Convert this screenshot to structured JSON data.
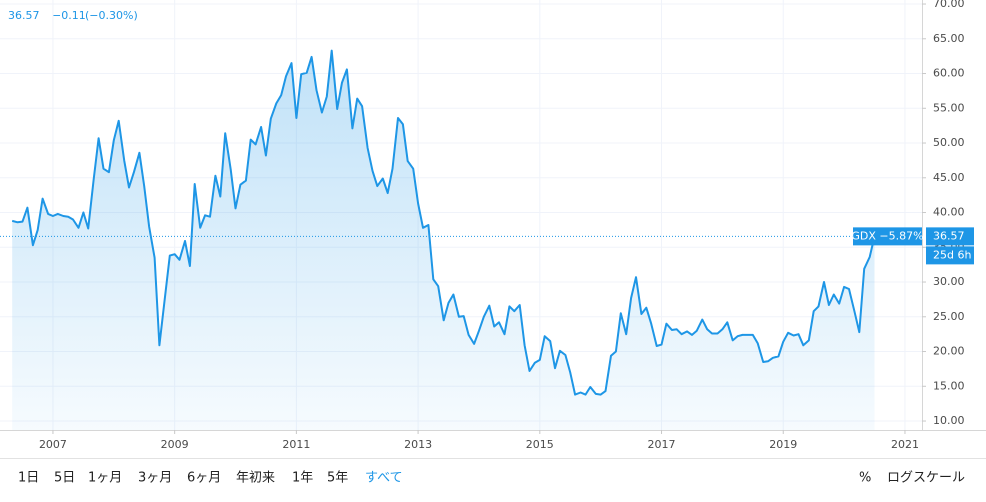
{
  "chart_data": {
    "type": "area-line",
    "header": {
      "last": "36.57",
      "change": "−0.11",
      "change_pct": "(−0.30%)"
    },
    "x": [
      2006.33,
      2006.42,
      2006.5,
      2006.58,
      2006.67,
      2006.75,
      2006.83,
      2006.92,
      2007.0,
      2007.08,
      2007.17,
      2007.25,
      2007.33,
      2007.42,
      2007.5,
      2007.58,
      2007.67,
      2007.75,
      2007.83,
      2007.92,
      2008.0,
      2008.08,
      2008.17,
      2008.25,
      2008.33,
      2008.42,
      2008.5,
      2008.58,
      2008.67,
      2008.75,
      2008.83,
      2008.92,
      2009.0,
      2009.08,
      2009.17,
      2009.25,
      2009.33,
      2009.42,
      2009.5,
      2009.58,
      2009.67,
      2009.75,
      2009.83,
      2009.92,
      2010.0,
      2010.08,
      2010.17,
      2010.25,
      2010.33,
      2010.42,
      2010.5,
      2010.58,
      2010.67,
      2010.75,
      2010.83,
      2010.92,
      2011.0,
      2011.08,
      2011.17,
      2011.25,
      2011.33,
      2011.42,
      2011.5,
      2011.58,
      2011.67,
      2011.75,
      2011.83,
      2011.92,
      2012.0,
      2012.08,
      2012.17,
      2012.25,
      2012.33,
      2012.42,
      2012.5,
      2012.58,
      2012.67,
      2012.75,
      2012.83,
      2012.92,
      2013.0,
      2013.08,
      2013.17,
      2013.25,
      2013.33,
      2013.42,
      2013.5,
      2013.58,
      2013.67,
      2013.75,
      2013.83,
      2013.92,
      2014.0,
      2014.08,
      2014.17,
      2014.25,
      2014.33,
      2014.42,
      2014.5,
      2014.58,
      2014.67,
      2014.75,
      2014.83,
      2014.92,
      2015.0,
      2015.08,
      2015.17,
      2015.25,
      2015.33,
      2015.42,
      2015.5,
      2015.58,
      2015.67,
      2015.75,
      2015.83,
      2015.92,
      2016.0,
      2016.08,
      2016.17,
      2016.25,
      2016.33,
      2016.42,
      2016.5,
      2016.58,
      2016.67,
      2016.75,
      2016.83,
      2016.92,
      2017.0,
      2017.08,
      2017.17,
      2017.25,
      2017.33,
      2017.42,
      2017.5,
      2017.58,
      2017.67,
      2017.75,
      2017.83,
      2017.92,
      2018.0,
      2018.08,
      2018.17,
      2018.25,
      2018.33,
      2018.42,
      2018.5,
      2018.58,
      2018.67,
      2018.75,
      2018.83,
      2018.92,
      2019.0,
      2019.08,
      2019.17,
      2019.25,
      2019.33,
      2019.42,
      2019.5,
      2019.58,
      2019.67,
      2019.75,
      2019.83,
      2019.92,
      2020.0,
      2020.08,
      2020.17,
      2020.25,
      2020.33,
      2020.42,
      2020.5
    ],
    "series": [
      {
        "name": "GDX",
        "color": "#1e96e6",
        "values": [
          38.8,
          38.6,
          38.7,
          40.7,
          35.3,
          37.5,
          42.0,
          39.8,
          39.5,
          39.8,
          39.5,
          39.4,
          39.0,
          37.8,
          40.0,
          37.7,
          44.8,
          50.7,
          46.3,
          45.8,
          50.4,
          53.2,
          47.5,
          43.6,
          45.8,
          48.6,
          43.8,
          38.0,
          33.5,
          20.9,
          27.0,
          33.8,
          34.0,
          33.2,
          35.9,
          32.3,
          44.1,
          37.8,
          39.6,
          39.4,
          45.3,
          42.3,
          51.4,
          46.2,
          40.6,
          44.0,
          44.6,
          50.5,
          49.8,
          52.3,
          48.2,
          53.5,
          55.7,
          56.9,
          59.6,
          61.5,
          53.6,
          59.9,
          60.1,
          62.4,
          57.6,
          54.4,
          56.7,
          63.3,
          54.9,
          58.7,
          60.6,
          52.1,
          56.4,
          55.3,
          49.3,
          46.0,
          43.8,
          44.9,
          42.8,
          46.3,
          53.6,
          52.7,
          47.4,
          46.3,
          41.3,
          37.8,
          38.2,
          30.4,
          29.4,
          24.5,
          27.0,
          28.2,
          25.0,
          25.1,
          22.4,
          21.1,
          23.0,
          25.0,
          26.6,
          23.6,
          24.2,
          22.5,
          26.5,
          25.8,
          26.7,
          20.9,
          17.2,
          18.4,
          18.8,
          22.2,
          21.5,
          17.6,
          20.1,
          19.5,
          17.0,
          13.8,
          14.1,
          13.8,
          14.9,
          13.9,
          13.8,
          14.3,
          19.4,
          20.0,
          25.5,
          22.5,
          27.7,
          30.7,
          25.4,
          26.3,
          24.0,
          20.8,
          21.0,
          24.0,
          23.1,
          23.2,
          22.5,
          22.9,
          22.4,
          23.0,
          24.6,
          23.2,
          22.6,
          22.6,
          23.2,
          24.2,
          21.6,
          22.2,
          22.4,
          22.4,
          22.4,
          21.2,
          18.5,
          18.6,
          19.1,
          19.3,
          21.4,
          22.7,
          22.3,
          22.5,
          20.9,
          21.6,
          25.8,
          26.5,
          30.0,
          26.7,
          28.2,
          26.9,
          29.3,
          29.0,
          25.8,
          22.8,
          31.9,
          33.6,
          36.57
        ]
      }
    ],
    "xlim": [
      2006.13,
      2021.28
    ],
    "xticks": [
      2007,
      2009,
      2011,
      2013,
      2015,
      2017,
      2019,
      2021
    ],
    "ylim": [
      8.71,
      70.58
    ],
    "yticks": [
      {
        "value": 10,
        "label": "10.00"
      },
      {
        "value": 15,
        "label": "15.00"
      },
      {
        "value": 20,
        "label": "20.00"
      },
      {
        "value": 25,
        "label": "25.00"
      },
      {
        "value": 30,
        "label": "30.00"
      },
      {
        "value": 35,
        "label": "35.00"
      },
      {
        "value": 40,
        "label": "40.00"
      },
      {
        "value": 45,
        "label": "45.00"
      },
      {
        "value": 50,
        "label": "50.00"
      },
      {
        "value": 55,
        "label": "55.00"
      },
      {
        "value": 60,
        "label": "60.00"
      },
      {
        "value": 65,
        "label": "65.00"
      },
      {
        "value": 70,
        "label": "70.00"
      }
    ],
    "grid": true,
    "price_line": {
      "value": 36.57,
      "label": "36.57"
    },
    "symbol_label": "GDX −5.87%",
    "countdown": "25d 6h"
  },
  "toolbar": {
    "ranges": [
      "1日",
      "5日",
      "1ヶ月",
      "3ヶ月",
      "6ヶ月",
      "年初来",
      "1年",
      "5年",
      "すべて"
    ],
    "active_index": 8,
    "right": [
      "%",
      "ログスケール"
    ]
  }
}
